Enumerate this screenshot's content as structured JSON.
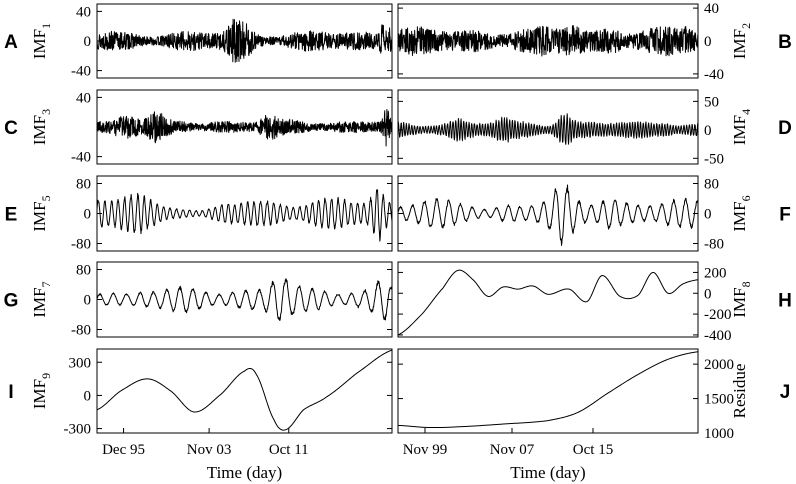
{
  "chart_data": [
    {
      "panel": "A",
      "type": "line",
      "ylabel": "IMF",
      "ylabel_sub": "1",
      "yticks": [
        40,
        0,
        -40
      ],
      "ylim": [
        -50,
        50
      ],
      "side": "left",
      "signal": {
        "kind": "noise",
        "amp": 14,
        "bursts": [
          [
            0.47,
            0.03,
            2.5
          ],
          [
            0.51,
            0.02,
            1.8
          ],
          [
            0.97,
            0.01,
            3.2
          ],
          [
            0.99,
            0.01,
            3.0
          ]
        ]
      }
    },
    {
      "panel": "B",
      "type": "line",
      "ylabel": "IMF",
      "ylabel_sub": "2",
      "yticks": [
        40,
        0,
        -40
      ],
      "ylim": [
        -45,
        45
      ],
      "side": "right",
      "signal": {
        "kind": "noise",
        "amp": 17,
        "bursts": [
          [
            0.58,
            0.03,
            1.9
          ],
          [
            0.72,
            0.03,
            1.5
          ],
          [
            0.97,
            0.02,
            1.6
          ]
        ]
      }
    },
    {
      "panel": "C",
      "type": "line",
      "ylabel": "IMF",
      "ylabel_sub": "3",
      "yticks": [
        40,
        -40
      ],
      "ylim": [
        -50,
        50
      ],
      "side": "left",
      "signal": {
        "kind": "noise",
        "amp": 10,
        "bursts": [
          [
            0.1,
            0.04,
            2.8
          ],
          [
            0.2,
            0.03,
            2.2
          ],
          [
            0.58,
            0.03,
            2.0
          ],
          [
            0.98,
            0.01,
            4.0
          ]
        ]
      }
    },
    {
      "panel": "D",
      "type": "line",
      "ylabel": "IMF",
      "ylabel_sub": "4",
      "yticks": [
        50,
        0,
        -50
      ],
      "ylim": [
        -60,
        70
      ],
      "side": "right",
      "signal": {
        "kind": "osc",
        "amp": 14,
        "period": 0.009,
        "bursts": [
          [
            0.55,
            0.03,
            3.2
          ],
          [
            0.35,
            0.03,
            1.6
          ],
          [
            0.2,
            0.03,
            1.5
          ],
          [
            0.9,
            0.03,
            1.6
          ]
        ]
      }
    },
    {
      "panel": "E",
      "type": "line",
      "ylabel": "IMF",
      "ylabel_sub": "5",
      "yticks": [
        80,
        0,
        -80
      ],
      "ylim": [
        -100,
        100
      ],
      "side": "left",
      "signal": {
        "kind": "osc",
        "amp": 38,
        "period": 0.022,
        "bursts": [
          [
            0.12,
            0.06,
            1.5
          ],
          [
            0.95,
            0.02,
            2.4
          ],
          [
            0.35,
            0.08,
            0.2
          ]
        ]
      }
    },
    {
      "panel": "F",
      "type": "line",
      "ylabel": "IMF",
      "ylabel_sub": "6",
      "yticks": [
        80,
        0,
        -80
      ],
      "ylim": [
        -100,
        100
      ],
      "side": "right",
      "signal": {
        "kind": "osc",
        "amp": 34,
        "period": 0.04,
        "bursts": [
          [
            0.55,
            0.04,
            2.0
          ],
          [
            0.7,
            0.04,
            1.7
          ],
          [
            0.3,
            0.05,
            0.4
          ]
        ]
      }
    },
    {
      "panel": "G",
      "type": "line",
      "ylabel": "IMF",
      "ylabel_sub": "7",
      "yticks": [
        80,
        0,
        -80
      ],
      "ylim": [
        -100,
        100
      ],
      "side": "left",
      "signal": {
        "kind": "osc",
        "amp": 30,
        "period": 0.045,
        "bursts": [
          [
            0.62,
            0.04,
            2.6
          ],
          [
            0.97,
            0.03,
            2.2
          ],
          [
            0.1,
            0.05,
            0.6
          ]
        ]
      }
    },
    {
      "panel": "H",
      "type": "line",
      "ylabel": "IMF",
      "ylabel_sub": "8",
      "yticks": [
        200,
        0,
        -200,
        -400
      ],
      "ylim": [
        -420,
        300
      ],
      "side": "right",
      "points": [
        [
          0,
          -400
        ],
        [
          0.08,
          -200
        ],
        [
          0.15,
          50
        ],
        [
          0.2,
          220
        ],
        [
          0.25,
          130
        ],
        [
          0.3,
          -30
        ],
        [
          0.35,
          60
        ],
        [
          0.4,
          40
        ],
        [
          0.45,
          70
        ],
        [
          0.5,
          -10
        ],
        [
          0.57,
          40
        ],
        [
          0.63,
          -80
        ],
        [
          0.68,
          170
        ],
        [
          0.74,
          -30
        ],
        [
          0.8,
          -20
        ],
        [
          0.85,
          200
        ],
        [
          0.9,
          0
        ],
        [
          0.95,
          90
        ],
        [
          1,
          130
        ]
      ]
    },
    {
      "panel": "I",
      "type": "line",
      "ylabel": "IMF",
      "ylabel_sub": "9",
      "yticks": [
        300,
        0,
        -300
      ],
      "ylim": [
        -340,
        420
      ],
      "side": "left",
      "xticks": [
        "Dec 95",
        "Nov 03",
        "Oct 11"
      ],
      "xlabel": "Time (day)",
      "points": [
        [
          0,
          -130
        ],
        [
          0.08,
          40
        ],
        [
          0.17,
          150
        ],
        [
          0.25,
          40
        ],
        [
          0.33,
          -150
        ],
        [
          0.42,
          10
        ],
        [
          0.5,
          220
        ],
        [
          0.54,
          190
        ],
        [
          0.6,
          -220
        ],
        [
          0.64,
          -310
        ],
        [
          0.7,
          -130
        ],
        [
          0.78,
          -10
        ],
        [
          0.88,
          200
        ],
        [
          1,
          410
        ]
      ]
    },
    {
      "panel": "J",
      "type": "line",
      "ylabel": "Residue",
      "ylabel_sub": "",
      "yticks": [
        2000,
        1500,
        1000
      ],
      "ylim": [
        1000,
        2220
      ],
      "side": "right",
      "xticks": [
        "Nov 99",
        "Nov 07",
        "Oct 15"
      ],
      "xlabel": "Time (day)",
      "points": [
        [
          0,
          1110
        ],
        [
          0.1,
          1080
        ],
        [
          0.2,
          1090
        ],
        [
          0.35,
          1130
        ],
        [
          0.5,
          1180
        ],
        [
          0.6,
          1300
        ],
        [
          0.7,
          1580
        ],
        [
          0.8,
          1850
        ],
        [
          0.9,
          2070
        ],
        [
          1,
          2180
        ]
      ]
    }
  ]
}
